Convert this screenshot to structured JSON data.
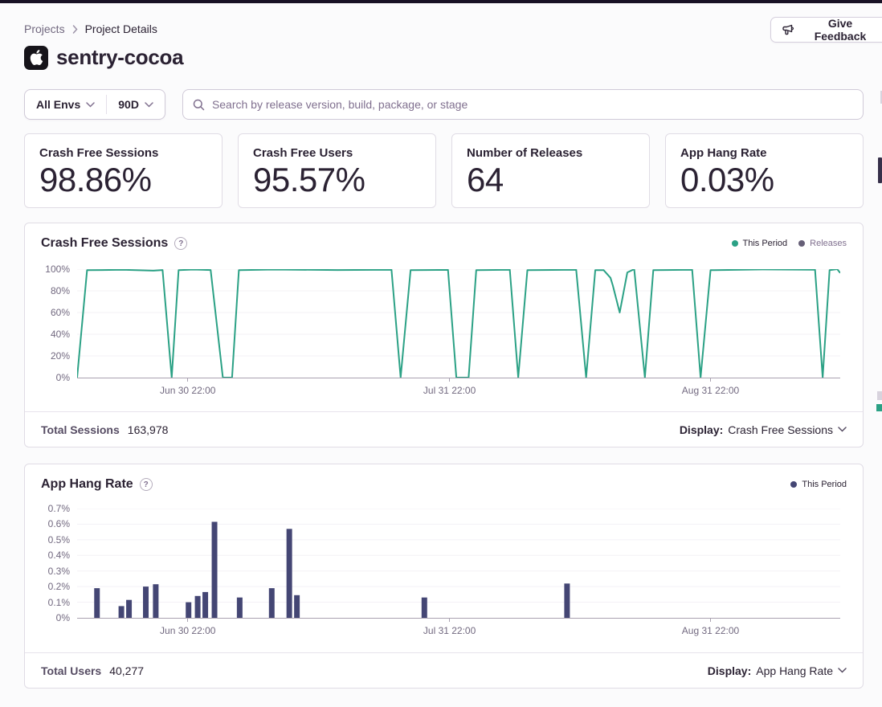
{
  "header": {
    "breadcrumb": {
      "parent": "Projects",
      "current": "Project Details"
    },
    "feedback_button": "Give Feedback",
    "project_title": "sentry-cocoa"
  },
  "filters": {
    "environment": "All Envs",
    "period": "90D",
    "search_placeholder": "Search by release version, build, package, or stage"
  },
  "stat_cards": [
    {
      "label": "Crash Free Sessions",
      "value": "98.86%"
    },
    {
      "label": "Crash Free Users",
      "value": "95.57%"
    },
    {
      "label": "Number of Releases",
      "value": "64"
    },
    {
      "label": "App Hang Rate",
      "value": "0.03%"
    }
  ],
  "colors": {
    "accent_teal": "#2ba185",
    "accent_navy": "#444674",
    "releases_dot": "#665f77",
    "text_dark": "#2b2233",
    "text_gray": "#80708f",
    "border": "#e0dce5"
  },
  "chart_data": [
    {
      "type": "line",
      "title": "Crash Free Sessions",
      "color": "#2ba185",
      "legend": [
        {
          "label": "This Period",
          "color": "#2ba185"
        },
        {
          "label": "Releases",
          "color": "#665f77"
        }
      ],
      "ylim": [
        0,
        100
      ],
      "y_ticks": [
        "100%",
        "80%",
        "60%",
        "40%",
        "20%",
        "0%"
      ],
      "x_ticks": [
        {
          "label": "Jun 30 22:00",
          "pos": 0.145
        },
        {
          "label": "Jul 31 22:00",
          "pos": 0.488
        },
        {
          "label": "Aug 31 22:00",
          "pos": 0.83
        }
      ],
      "points": [
        [
          0.0,
          0
        ],
        [
          0.013,
          99
        ],
        [
          0.06,
          99.4
        ],
        [
          0.1,
          98.6
        ],
        [
          0.112,
          99.2
        ],
        [
          0.124,
          0
        ],
        [
          0.133,
          99
        ],
        [
          0.152,
          99.6
        ],
        [
          0.175,
          99.2
        ],
        [
          0.191,
          0
        ],
        [
          0.203,
          0
        ],
        [
          0.212,
          99
        ],
        [
          0.257,
          99.6
        ],
        [
          0.341,
          99.2
        ],
        [
          0.412,
          99.4
        ],
        [
          0.424,
          0
        ],
        [
          0.437,
          99
        ],
        [
          0.486,
          99.3
        ],
        [
          0.497,
          0
        ],
        [
          0.513,
          0
        ],
        [
          0.523,
          99
        ],
        [
          0.567,
          99.4
        ],
        [
          0.578,
          0
        ],
        [
          0.59,
          99
        ],
        [
          0.654,
          99.5
        ],
        [
          0.667,
          0
        ],
        [
          0.679,
          99
        ],
        [
          0.69,
          99
        ],
        [
          0.699,
          92
        ],
        [
          0.702,
          85
        ],
        [
          0.711,
          60
        ],
        [
          0.721,
          97
        ],
        [
          0.73,
          100
        ],
        [
          0.744,
          0
        ],
        [
          0.755,
          99
        ],
        [
          0.806,
          99.4
        ],
        [
          0.817,
          0
        ],
        [
          0.83,
          99
        ],
        [
          0.898,
          99.7
        ],
        [
          0.967,
          99.4
        ],
        [
          0.977,
          0
        ],
        [
          0.986,
          99
        ],
        [
          0.996,
          100
        ],
        [
          1.0,
          96.5
        ]
      ],
      "footer": {
        "label": "Total Sessions",
        "value": "163,978",
        "display_label": "Display:",
        "display_value": "Crash Free Sessions"
      }
    },
    {
      "type": "bar",
      "title": "App Hang Rate",
      "color": "#444674",
      "legend": [
        {
          "label": "This Period",
          "color": "#444674"
        }
      ],
      "ylim": [
        0,
        0.7
      ],
      "y_ticks": [
        "0.7%",
        "0.6%",
        "0.5%",
        "0.4%",
        "0.3%",
        "0.2%",
        "0.1%",
        "0%"
      ],
      "x_ticks": [
        {
          "label": "Jun 30 22:00",
          "pos": 0.145
        },
        {
          "label": "Jul 31 22:00",
          "pos": 0.488
        },
        {
          "label": "Aug 31 22:00",
          "pos": 0.83
        }
      ],
      "bars": [
        [
          0.026,
          0.19
        ],
        [
          0.058,
          0.075
        ],
        [
          0.068,
          0.115
        ],
        [
          0.09,
          0.2
        ],
        [
          0.103,
          0.215
        ],
        [
          0.146,
          0.1
        ],
        [
          0.158,
          0.14
        ],
        [
          0.168,
          0.165
        ],
        [
          0.18,
          0.615
        ],
        [
          0.213,
          0.13
        ],
        [
          0.255,
          0.19
        ],
        [
          0.278,
          0.57
        ],
        [
          0.288,
          0.145
        ],
        [
          0.455,
          0.13
        ],
        [
          0.642,
          0.22
        ]
      ],
      "footer": {
        "label": "Total Users",
        "value": "40,277",
        "display_label": "Display:",
        "display_value": "App Hang Rate"
      }
    }
  ]
}
